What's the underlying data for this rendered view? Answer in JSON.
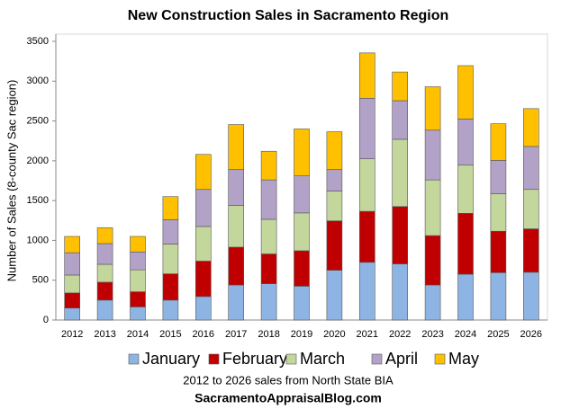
{
  "chart_data": {
    "type": "stacked-bar",
    "title": "New Construction Sales in Sacramento Region",
    "y_label": "Number of Sales (8-county Sac region)",
    "footnote": "2012 to 2026 sales from North State BIA",
    "source": "SacramentoAppraisalBlog.com",
    "categories": [
      "2012",
      "2013",
      "2014",
      "2015",
      "2016",
      "2017",
      "2018",
      "2019",
      "2020",
      "2021",
      "2022",
      "2023",
      "2024",
      "2025",
      "2026"
    ],
    "series": [
      {
        "name": "January",
        "color": "#8eb4e3",
        "values": [
          150,
          250,
          165,
          250,
          295,
          440,
          455,
          425,
          625,
          725,
          705,
          440,
          575,
          595,
          600
        ]
      },
      {
        "name": "February",
        "color": "#c00000",
        "values": [
          190,
          225,
          190,
          330,
          445,
          475,
          375,
          445,
          620,
          640,
          720,
          620,
          765,
          520,
          545
        ]
      },
      {
        "name": "March",
        "color": "#c3d69b",
        "values": [
          225,
          225,
          275,
          375,
          435,
          525,
          435,
          475,
          375,
          660,
          845,
          700,
          605,
          470,
          495
        ]
      },
      {
        "name": "April",
        "color": "#b3a2c7",
        "values": [
          280,
          260,
          225,
          305,
          465,
          450,
          495,
          465,
          270,
          760,
          485,
          625,
          580,
          420,
          540
        ]
      },
      {
        "name": "May",
        "color": "#ffc000",
        "values": [
          205,
          200,
          195,
          290,
          440,
          565,
          360,
          590,
          475,
          570,
          360,
          545,
          670,
          460,
          475
        ]
      }
    ],
    "ylim": [
      0,
      3500
    ],
    "yticks": [
      0,
      500,
      1000,
      1500,
      2000,
      2500,
      3000,
      3500
    ],
    "legend": "bottom"
  }
}
